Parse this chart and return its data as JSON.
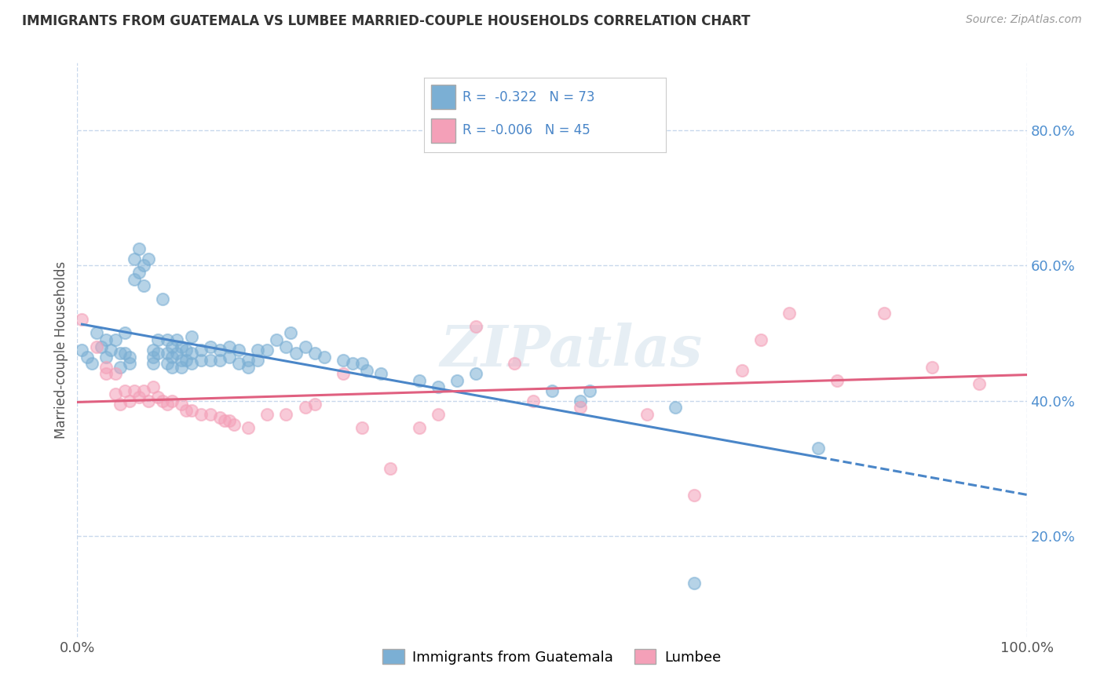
{
  "title": "IMMIGRANTS FROM GUATEMALA VS LUMBEE MARRIED-COUPLE HOUSEHOLDS CORRELATION CHART",
  "source": "Source: ZipAtlas.com",
  "ylabel": "Married-couple Households",
  "xlim": [
    0.0,
    1.0
  ],
  "ylim": [
    0.05,
    0.9
  ],
  "ytick_labels": [
    "20.0%",
    "40.0%",
    "60.0%",
    "80.0%"
  ],
  "ytick_values": [
    0.2,
    0.4,
    0.6,
    0.8
  ],
  "xtick_values": [
    0.0,
    1.0
  ],
  "xtick_labels": [
    "0.0%",
    "100.0%"
  ],
  "legend_labels": [
    "Immigrants from Guatemala",
    "Lumbee"
  ],
  "blue_color": "#7bafd4",
  "pink_color": "#f4a0b8",
  "trend_blue_color": "#4a86c8",
  "trend_pink_color": "#e06080",
  "watermark": "ZIPatlas",
  "background_color": "#ffffff",
  "grid_color": "#c8d8ec",
  "blue_scatter": [
    [
      0.005,
      0.475
    ],
    [
      0.01,
      0.465
    ],
    [
      0.015,
      0.455
    ],
    [
      0.02,
      0.5
    ],
    [
      0.025,
      0.48
    ],
    [
      0.03,
      0.49
    ],
    [
      0.03,
      0.465
    ],
    [
      0.035,
      0.475
    ],
    [
      0.04,
      0.49
    ],
    [
      0.045,
      0.47
    ],
    [
      0.045,
      0.45
    ],
    [
      0.05,
      0.5
    ],
    [
      0.05,
      0.47
    ],
    [
      0.055,
      0.465
    ],
    [
      0.055,
      0.455
    ],
    [
      0.06,
      0.61
    ],
    [
      0.06,
      0.58
    ],
    [
      0.065,
      0.625
    ],
    [
      0.065,
      0.59
    ],
    [
      0.07,
      0.6
    ],
    [
      0.07,
      0.57
    ],
    [
      0.075,
      0.61
    ],
    [
      0.08,
      0.475
    ],
    [
      0.08,
      0.465
    ],
    [
      0.08,
      0.455
    ],
    [
      0.085,
      0.49
    ],
    [
      0.085,
      0.47
    ],
    [
      0.09,
      0.55
    ],
    [
      0.095,
      0.49
    ],
    [
      0.095,
      0.47
    ],
    [
      0.095,
      0.455
    ],
    [
      0.1,
      0.48
    ],
    [
      0.1,
      0.465
    ],
    [
      0.1,
      0.45
    ],
    [
      0.105,
      0.49
    ],
    [
      0.105,
      0.47
    ],
    [
      0.11,
      0.48
    ],
    [
      0.11,
      0.46
    ],
    [
      0.11,
      0.45
    ],
    [
      0.115,
      0.475
    ],
    [
      0.115,
      0.46
    ],
    [
      0.12,
      0.495
    ],
    [
      0.12,
      0.47
    ],
    [
      0.12,
      0.455
    ],
    [
      0.13,
      0.475
    ],
    [
      0.13,
      0.46
    ],
    [
      0.14,
      0.48
    ],
    [
      0.14,
      0.46
    ],
    [
      0.15,
      0.475
    ],
    [
      0.15,
      0.46
    ],
    [
      0.16,
      0.48
    ],
    [
      0.16,
      0.465
    ],
    [
      0.17,
      0.475
    ],
    [
      0.17,
      0.455
    ],
    [
      0.18,
      0.46
    ],
    [
      0.18,
      0.45
    ],
    [
      0.19,
      0.475
    ],
    [
      0.19,
      0.46
    ],
    [
      0.2,
      0.475
    ],
    [
      0.21,
      0.49
    ],
    [
      0.22,
      0.48
    ],
    [
      0.225,
      0.5
    ],
    [
      0.23,
      0.47
    ],
    [
      0.24,
      0.48
    ],
    [
      0.25,
      0.47
    ],
    [
      0.26,
      0.465
    ],
    [
      0.28,
      0.46
    ],
    [
      0.29,
      0.455
    ],
    [
      0.3,
      0.455
    ],
    [
      0.305,
      0.445
    ],
    [
      0.32,
      0.44
    ],
    [
      0.36,
      0.43
    ],
    [
      0.38,
      0.42
    ],
    [
      0.4,
      0.43
    ],
    [
      0.42,
      0.44
    ],
    [
      0.5,
      0.415
    ],
    [
      0.53,
      0.4
    ],
    [
      0.54,
      0.415
    ],
    [
      0.63,
      0.39
    ],
    [
      0.65,
      0.13
    ],
    [
      0.78,
      0.33
    ]
  ],
  "pink_scatter": [
    [
      0.005,
      0.52
    ],
    [
      0.02,
      0.48
    ],
    [
      0.03,
      0.45
    ],
    [
      0.03,
      0.44
    ],
    [
      0.04,
      0.44
    ],
    [
      0.04,
      0.41
    ],
    [
      0.045,
      0.395
    ],
    [
      0.05,
      0.415
    ],
    [
      0.055,
      0.4
    ],
    [
      0.06,
      0.415
    ],
    [
      0.065,
      0.405
    ],
    [
      0.07,
      0.415
    ],
    [
      0.075,
      0.4
    ],
    [
      0.08,
      0.42
    ],
    [
      0.085,
      0.405
    ],
    [
      0.09,
      0.4
    ],
    [
      0.095,
      0.395
    ],
    [
      0.1,
      0.4
    ],
    [
      0.11,
      0.395
    ],
    [
      0.115,
      0.385
    ],
    [
      0.12,
      0.385
    ],
    [
      0.13,
      0.38
    ],
    [
      0.14,
      0.38
    ],
    [
      0.15,
      0.375
    ],
    [
      0.155,
      0.37
    ],
    [
      0.16,
      0.37
    ],
    [
      0.165,
      0.365
    ],
    [
      0.18,
      0.36
    ],
    [
      0.2,
      0.38
    ],
    [
      0.22,
      0.38
    ],
    [
      0.24,
      0.39
    ],
    [
      0.25,
      0.395
    ],
    [
      0.28,
      0.44
    ],
    [
      0.3,
      0.36
    ],
    [
      0.33,
      0.3
    ],
    [
      0.36,
      0.36
    ],
    [
      0.38,
      0.38
    ],
    [
      0.42,
      0.51
    ],
    [
      0.46,
      0.455
    ],
    [
      0.48,
      0.4
    ],
    [
      0.53,
      0.39
    ],
    [
      0.6,
      0.38
    ],
    [
      0.65,
      0.26
    ],
    [
      0.7,
      0.445
    ],
    [
      0.72,
      0.49
    ],
    [
      0.75,
      0.53
    ],
    [
      0.8,
      0.43
    ],
    [
      0.85,
      0.53
    ],
    [
      0.9,
      0.45
    ],
    [
      0.95,
      0.425
    ]
  ]
}
